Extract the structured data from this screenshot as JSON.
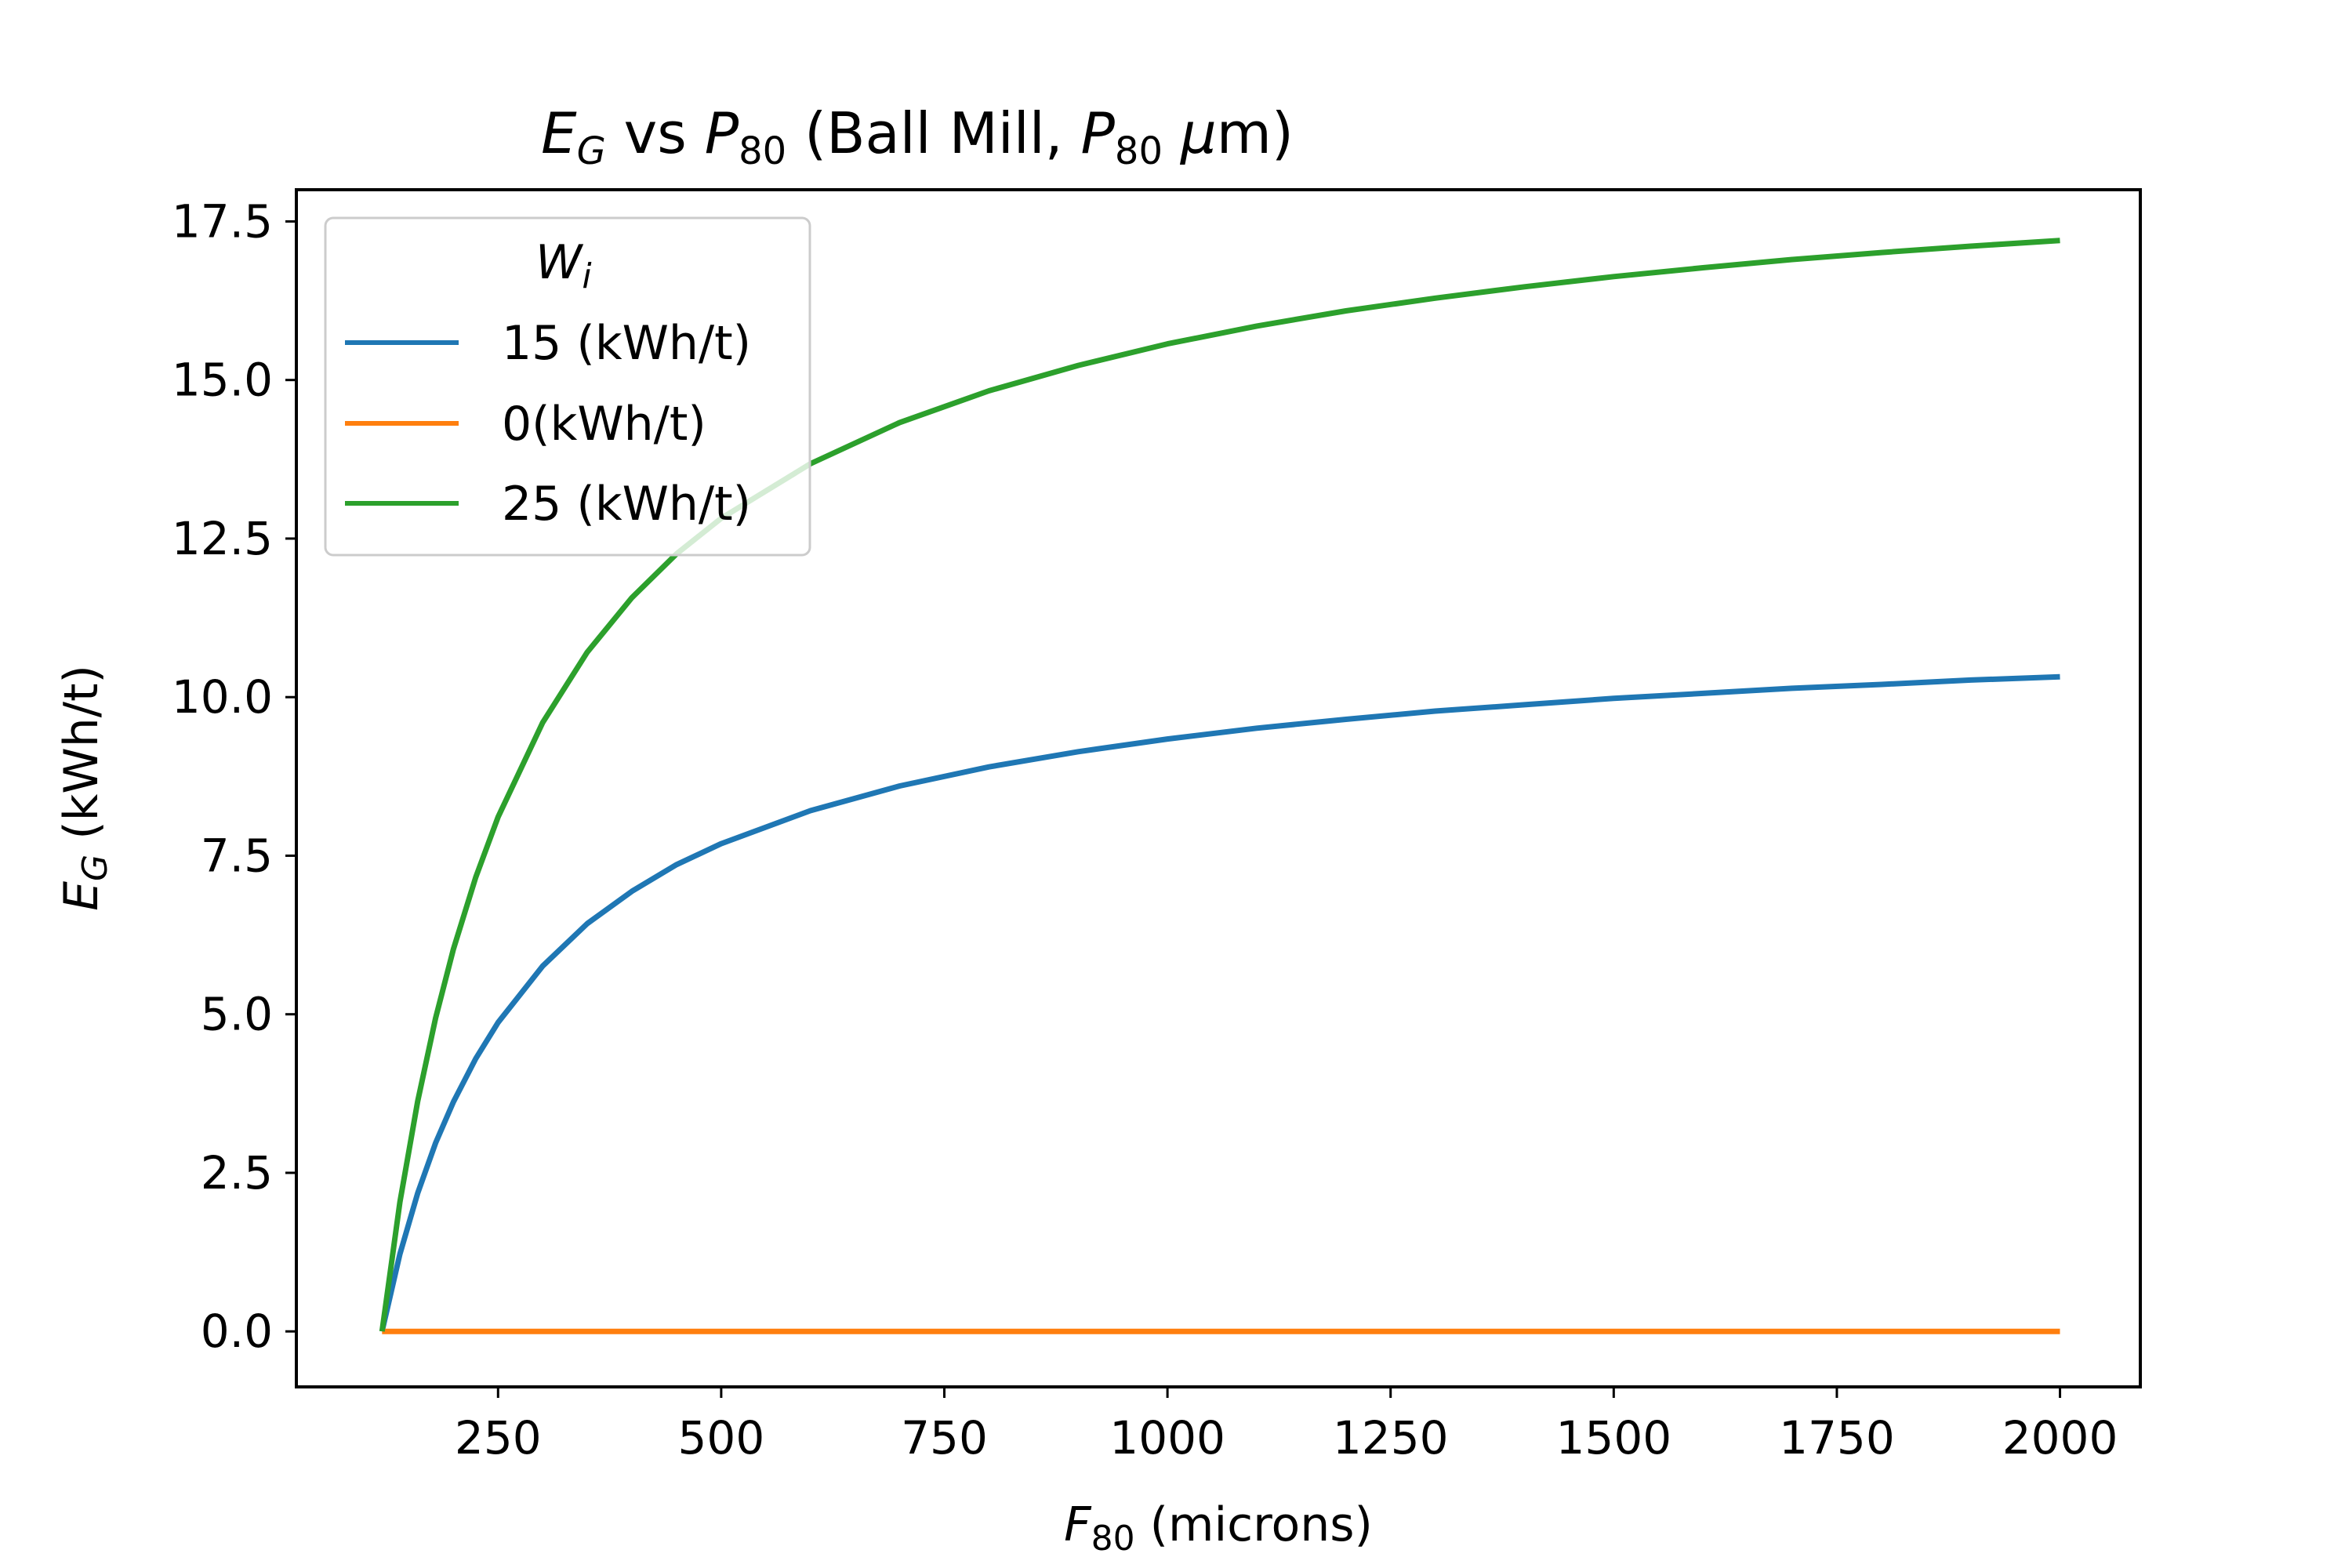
{
  "chart_data": {
    "type": "line",
    "title": {
      "e": "E",
      "e_sub": "G",
      "vs": " vs ",
      "p": "P",
      "p_sub": "80",
      "mid": " (Ball Mill, ",
      "p2": "P",
      "p2_sub": "80",
      "mu": " μ",
      "end": "m)"
    },
    "xlabel": {
      "f": "F",
      "f_sub": "80",
      "rest": " (microns)"
    },
    "ylabel": {
      "e": "E",
      "e_sub": "G",
      "rest": " (kWh/t)"
    },
    "xlim": [
      24,
      2090
    ],
    "ylim": [
      -0.875,
      18.0
    ],
    "xticks": [
      250,
      500,
      750,
      1000,
      1250,
      1500,
      1750,
      2000
    ],
    "xtick_labels": [
      "250",
      "500",
      "750",
      "1000",
      "1250",
      "1500",
      "1750",
      "2000"
    ],
    "yticks": [
      0.0,
      2.5,
      5.0,
      7.5,
      10.0,
      12.5,
      15.0,
      17.5
    ],
    "ytick_labels": [
      "0.0",
      "2.5",
      "5.0",
      "7.5",
      "10.0",
      "12.5",
      "15.0",
      "17.5"
    ],
    "grid": false,
    "legend": {
      "title_w": "W",
      "title_sub": "i",
      "placement": "top-left",
      "entries": [
        "15 (kWh/t)",
        "0(kWh/t)",
        "25 (kWh/t)"
      ]
    },
    "x": [
      120,
      140,
      160,
      180,
      200,
      225,
      250,
      300,
      350,
      400,
      450,
      500,
      600,
      700,
      800,
      900,
      1000,
      1100,
      1200,
      1300,
      1400,
      1500,
      1600,
      1700,
      1800,
      1900,
      2000
    ],
    "series": [
      {
        "name": "15 (kWh/t)",
        "color": "#1f77b4",
        "values": [
          0.0,
          1.22,
          2.18,
          2.97,
          3.62,
          4.3,
          4.87,
          5.76,
          6.43,
          6.94,
          7.36,
          7.69,
          8.21,
          8.6,
          8.9,
          9.14,
          9.34,
          9.51,
          9.65,
          9.78,
          9.88,
          9.98,
          10.06,
          10.14,
          10.2,
          10.27,
          10.32
        ]
      },
      {
        "name": "0(kWh/t)",
        "color": "#ff7f0e",
        "values": [
          0.0,
          0.0,
          0.0,
          0.0,
          0.0,
          0.0,
          0.0,
          0.0,
          0.0,
          0.0,
          0.0,
          0.0,
          0.0,
          0.0,
          0.0,
          0.0,
          0.0,
          0.0,
          0.0,
          0.0,
          0.0,
          0.0,
          0.0,
          0.0,
          0.0,
          0.0,
          0.0
        ]
      },
      {
        "name": "25 (kWh/t)",
        "color": "#2ca02c",
        "values": [
          0.0,
          2.04,
          3.63,
          4.94,
          6.03,
          7.16,
          8.11,
          9.6,
          10.71,
          11.57,
          12.26,
          12.82,
          13.68,
          14.33,
          14.83,
          15.23,
          15.57,
          15.85,
          16.09,
          16.29,
          16.47,
          16.63,
          16.77,
          16.9,
          17.01,
          17.11,
          17.2
        ]
      }
    ]
  }
}
